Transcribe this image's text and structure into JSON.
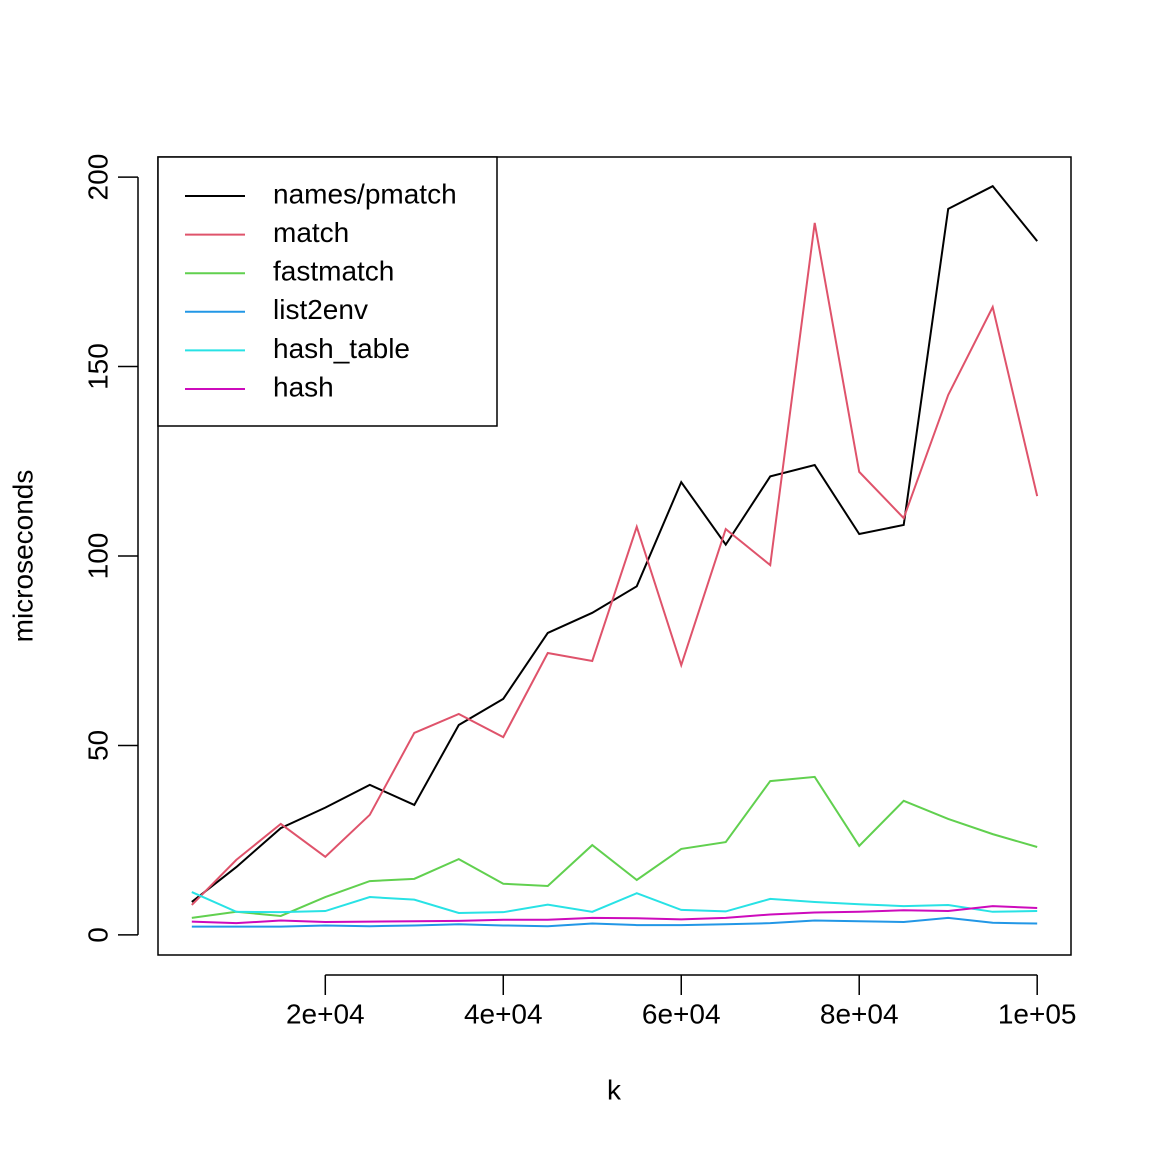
{
  "chart_data": {
    "type": "line",
    "x_label": "k",
    "y_label": "microseconds",
    "x": [
      5000,
      10000,
      15000,
      20000,
      25000,
      30000,
      35000,
      40000,
      45000,
      50000,
      55000,
      60000,
      65000,
      70000,
      75000,
      80000,
      85000,
      90000,
      95000,
      100000
    ],
    "series": [
      {
        "name": "names/pmatch",
        "color": "#000000",
        "values": [
          8.7,
          17.9,
          28.2,
          33.6,
          39.6,
          34.3,
          55.4,
          62.3,
          79.7,
          85,
          92,
          119.5,
          103,
          121,
          124,
          105.8,
          108.2,
          191.6,
          197.6,
          183.1
        ]
      },
      {
        "name": "match",
        "color": "#DF536B",
        "values": [
          7.9,
          19.8,
          29.3,
          20.6,
          31.7,
          53.3,
          58.3,
          52.2,
          74.4,
          72.3,
          107.7,
          71.2,
          107.1,
          97.6,
          187.9,
          122.2,
          110,
          142.5,
          165.7,
          115.8
        ]
      },
      {
        "name": "fastmatch",
        "color": "#61D04F",
        "values": [
          4.5,
          6.1,
          5,
          10,
          14.2,
          14.8,
          20,
          13.5,
          12.9,
          23.7,
          14.5,
          22.7,
          24.5,
          40.6,
          41.7,
          23.5,
          35.4,
          30.6,
          26.6,
          23.2
        ]
      },
      {
        "name": "list2env",
        "color": "#2297E6",
        "values": [
          2.2,
          2.2,
          2.2,
          2.5,
          2.3,
          2.5,
          2.8,
          2.5,
          2.3,
          3,
          2.6,
          2.6,
          2.8,
          3.1,
          3.8,
          3.6,
          3.4,
          4.5,
          3.2,
          3
        ]
      },
      {
        "name": "hash_table",
        "color": "#28E2E5",
        "values": [
          11.3,
          6.1,
          6,
          6.3,
          10,
          9.3,
          5.8,
          6,
          8,
          6.1,
          11,
          6.6,
          6.2,
          9.5,
          8.7,
          8.1,
          7.6,
          7.9,
          6.1,
          6.3
        ]
      },
      {
        "name": "hash",
        "color": "#CD0BBC",
        "values": [
          3.5,
          3.1,
          3.8,
          3.4,
          3.5,
          3.6,
          3.7,
          4,
          4,
          4.5,
          4.4,
          4.1,
          4.5,
          5.4,
          5.9,
          6.1,
          6.5,
          6.3,
          7.6,
          7.1
        ]
      }
    ],
    "xlim": [
      1200,
      103800
    ],
    "ylim": [
      -5.3,
      205.3
    ],
    "xticks": [
      {
        "value": 20000,
        "label": "2e+04"
      },
      {
        "value": 40000,
        "label": "4e+04"
      },
      {
        "value": 60000,
        "label": "6e+04"
      },
      {
        "value": 80000,
        "label": "8e+04"
      },
      {
        "value": 100000,
        "label": "1e+05"
      }
    ],
    "yticks": [
      0,
      50,
      100,
      150,
      200
    ],
    "legend": "topleft"
  }
}
